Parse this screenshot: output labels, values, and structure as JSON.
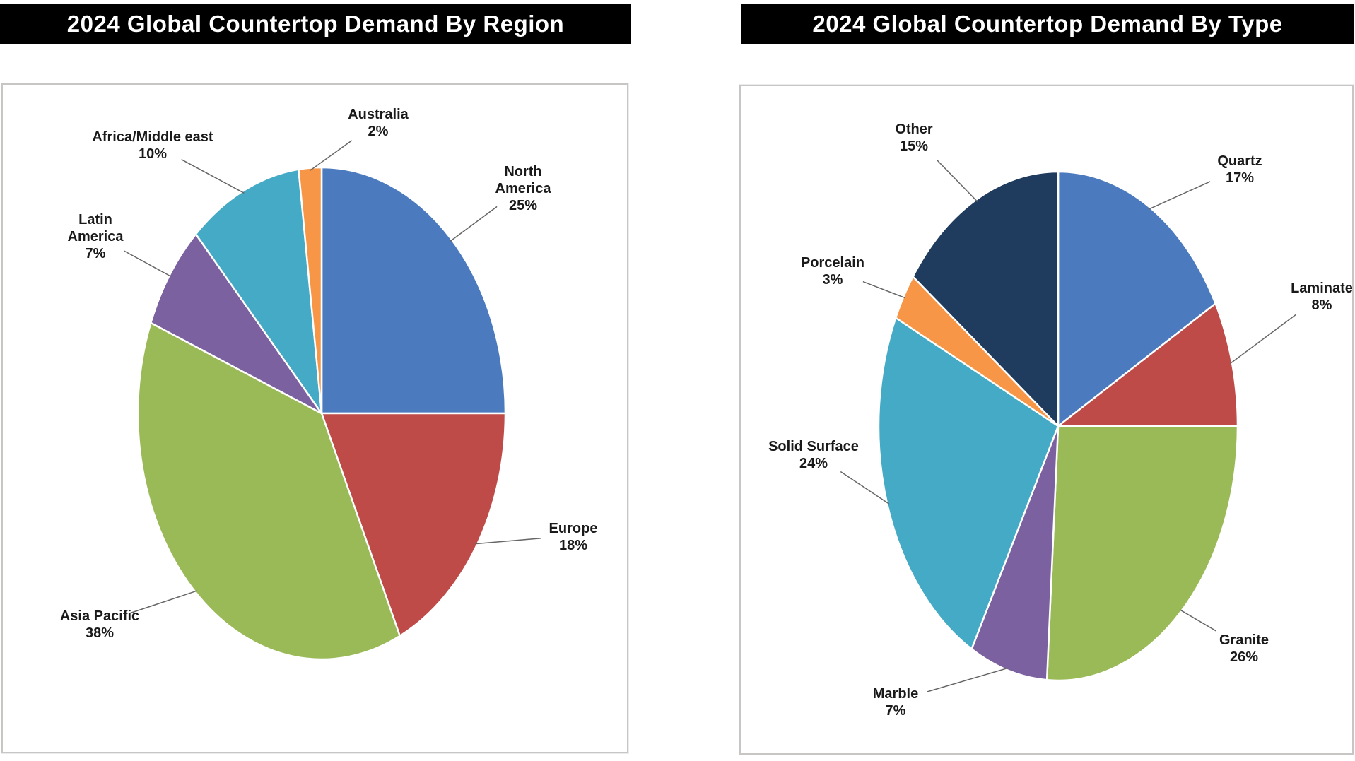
{
  "page": {
    "background": "#FFFFFF",
    "title_bar_background": "#000000",
    "title_bar_text_color": "#FFFFFF"
  },
  "chart_data": [
    {
      "type": "pie",
      "title": "2024 Global Countertop Demand By Region",
      "categories": [
        "North America",
        "Europe",
        "Asia Pacific",
        "Latin America",
        "Africa/Middle east",
        "Australia"
      ],
      "values": [
        25,
        18,
        38,
        7,
        10,
        2
      ],
      "unit": "%",
      "colors": [
        "#4B7BBE",
        "#BE4B48",
        "#9ABA58",
        "#7C61A1",
        "#45AAC5",
        "#F79646"
      ],
      "data_labels": [
        [
          "North",
          "America",
          "25%"
        ],
        [
          "Europe",
          "18%"
        ],
        [
          "Asia Pacific",
          "38%"
        ],
        [
          "Latin",
          "America",
          "7%"
        ],
        [
          "Africa/Middle east",
          "10%"
        ],
        [
          "Australia",
          "2%"
        ]
      ],
      "start_angle_deg": 0,
      "direction": "clockwise",
      "legend": "none",
      "leader_lines": true
    },
    {
      "type": "pie",
      "title": "2024 Global Countertop Demand By Type",
      "categories": [
        "Quartz",
        "Laminate",
        "Granite",
        "Marble",
        "Solid Surface",
        "Porcelain",
        "Other"
      ],
      "values": [
        17,
        8,
        26,
        7,
        24,
        3,
        15
      ],
      "unit": "%",
      "colors": [
        "#4B7BBE",
        "#BE4B48",
        "#9ABA58",
        "#7C61A1",
        "#45AAC5",
        "#F79646",
        "#1F3B5D"
      ],
      "data_labels": [
        [
          "Quartz",
          "17%"
        ],
        [
          "Laminate",
          "8%"
        ],
        [
          "Granite",
          "26%"
        ],
        [
          "Marble",
          "7%"
        ],
        [
          "Solid Surface",
          "24%"
        ],
        [
          "Porcelain",
          "3%"
        ],
        [
          "Other",
          "15%"
        ]
      ],
      "start_angle_deg": 0,
      "direction": "clockwise",
      "legend": "none",
      "leader_lines": true
    }
  ]
}
